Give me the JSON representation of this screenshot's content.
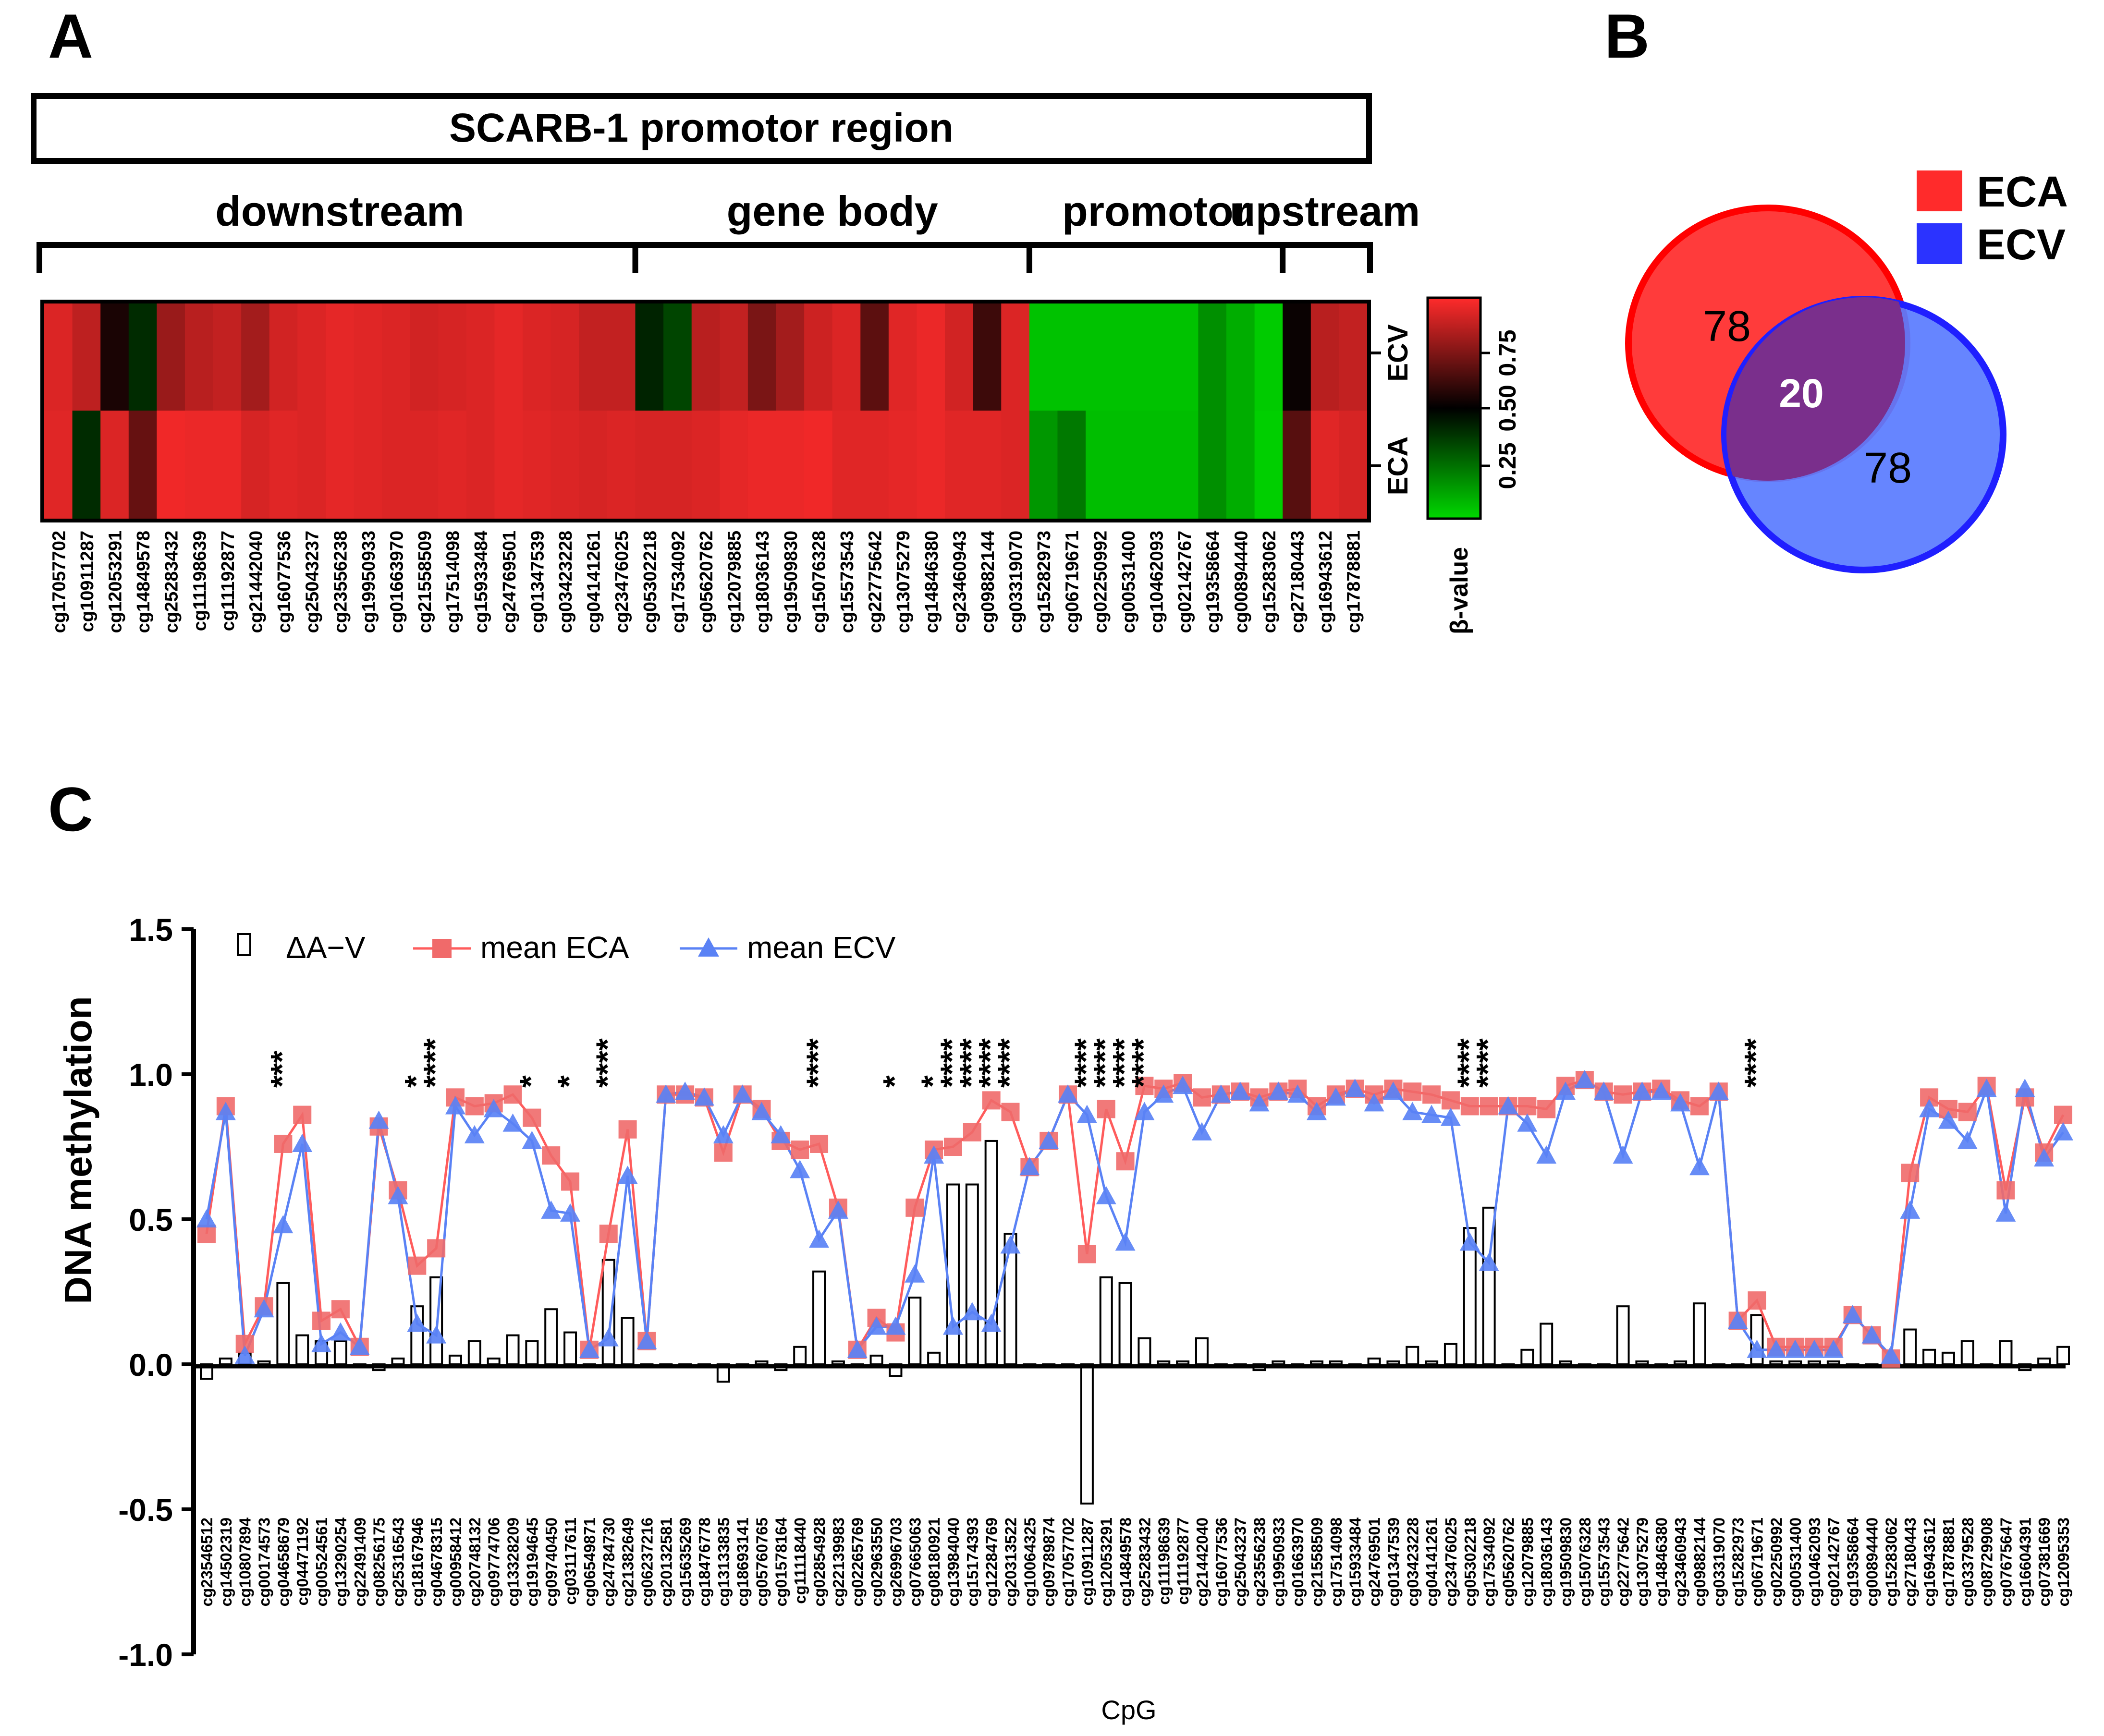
{
  "panels": {
    "a": "A",
    "b": "B",
    "c": "C"
  },
  "colors": {
    "eca": "#ff2b2b",
    "ecv": "#2b33ff",
    "eca_line": "#ff5c5c",
    "ecv_line": "#5a82f5",
    "overlap": "#7a2f8c"
  },
  "panel_a": {
    "title": "SCARB-1 promotor region",
    "regions": [
      {
        "label": "downstream",
        "n": 21
      },
      {
        "label": "gene body",
        "n": 14
      },
      {
        "label": "promotor",
        "n": 9
      },
      {
        "label": "upstream",
        "n": 3
      }
    ],
    "rows": [
      "ECV",
      "ECA"
    ],
    "colorbar_ticks": [
      "0.25",
      "0.50",
      "0.75"
    ],
    "colorbar_title": "β-value"
  },
  "panel_b": {
    "legend": [
      "ECA",
      "ECV"
    ],
    "only_eca": "78",
    "overlap": "20",
    "only_ecv": "78"
  },
  "chart_data": [
    {
      "type": "heatmap",
      "rows": [
        "ECV",
        "ECA"
      ],
      "columns": [
        "cg17057702",
        "cg10911287",
        "cg12053291",
        "cg14849578",
        "cg25283432",
        "cg11198639",
        "cg11192877",
        "cg21442040",
        "cg16077536",
        "cg25043237",
        "cg23556238",
        "cg19950933",
        "cg01663970",
        "cg21558509",
        "cg17514098",
        "cg15933484",
        "cg24769501",
        "cg01347539",
        "cg03423228",
        "cg04141261",
        "cg23476025",
        "cg05302218",
        "cg17534092",
        "cg05620762",
        "cg12079885",
        "cg18036143",
        "cg19509830",
        "cg15076328",
        "cg15573543",
        "cg22775642",
        "cg13075279",
        "cg14846380",
        "cg23460943",
        "cg09882144",
        "cg03319070",
        "cg15282973",
        "cg06719671",
        "cg02250992",
        "cg00531400",
        "cg10462093",
        "cg02142767",
        "cg19358664",
        "cg00894440",
        "cg15283062",
        "cg27180443",
        "cg16943612",
        "cg17878881"
      ],
      "values_ecv": [
        0.93,
        0.87,
        0.55,
        0.4,
        0.8,
        0.86,
        0.88,
        0.82,
        0.91,
        0.93,
        0.95,
        0.94,
        0.93,
        0.91,
        0.92,
        0.93,
        0.95,
        0.93,
        0.92,
        0.88,
        0.88,
        0.42,
        0.34,
        0.86,
        0.88,
        0.74,
        0.82,
        0.9,
        0.93,
        0.68,
        0.94,
        0.96,
        0.91,
        0.62,
        0.93,
        0.05,
        0.05,
        0.05,
        0.05,
        0.05,
        0.05,
        0.17,
        0.1,
        0.03,
        0.52,
        0.86,
        0.88
      ],
      "values_eca": [
        0.94,
        0.4,
        0.93,
        0.7,
        0.97,
        0.96,
        0.96,
        0.92,
        0.94,
        0.93,
        0.95,
        0.94,
        0.93,
        0.93,
        0.94,
        0.93,
        0.95,
        0.94,
        0.93,
        0.92,
        0.93,
        0.92,
        0.92,
        0.93,
        0.95,
        0.96,
        0.96,
        0.97,
        0.94,
        0.94,
        0.95,
        0.96,
        0.94,
        0.94,
        0.93,
        0.15,
        0.22,
        0.06,
        0.06,
        0.06,
        0.06,
        0.17,
        0.1,
        0.02,
        0.67,
        0.94,
        0.92
      ],
      "colorscale": [
        "#00d800",
        "#000000",
        "#ff2b2b"
      ],
      "range": [
        0,
        1
      ]
    },
    {
      "type": "line",
      "title": "",
      "xlabel": "CpG",
      "ylabel": "DNA methylation",
      "ylim": [
        -1.0,
        1.5
      ],
      "yticks": [
        "1.5",
        "1.0",
        "0.5",
        "0.0",
        "-0.5",
        "-1.0"
      ],
      "legend": [
        "ΔA−V",
        "mean ECA",
        "mean ECV"
      ],
      "categories": [
        "cg23546512",
        "cg14502319",
        "cg10807894",
        "cg00174573",
        "cg04658679",
        "cg04471192",
        "cg00524561",
        "cg13290254",
        "cg22491409",
        "cg08256175",
        "cg25316543",
        "cg18167946",
        "cg04678315",
        "cg00958412",
        "cg20748132",
        "cg09774706",
        "cg13328209",
        "cg19194645",
        "cg09740450",
        "cg03117611",
        "cg06549871",
        "cg24784730",
        "cg21382649",
        "cg06237216",
        "cg20132581",
        "cg15635269",
        "cg18476778",
        "cg13133835",
        "cg18693141",
        "cg05760765",
        "cg01578164",
        "cg11118440",
        "cg02854928",
        "cg22139983",
        "cg02265769",
        "cg02963550",
        "cg26996703",
        "cg07665063",
        "cg08180921",
        "cg13984040",
        "cg15174393",
        "cg12284769",
        "cg20313522",
        "cg10064325",
        "cg09789874",
        "cg17057702",
        "cg10911287",
        "cg12053291",
        "cg14849578",
        "cg25283432",
        "cg11198639",
        "cg11192877",
        "cg21442040",
        "cg16077536",
        "cg25043237",
        "cg23556238",
        "cg19950933",
        "cg01663970",
        "cg21558509",
        "cg17514098",
        "cg15933484",
        "cg24769501",
        "cg01347539",
        "cg03423228",
        "cg04141261",
        "cg23476025",
        "cg05302218",
        "cg17534092",
        "cg05620762",
        "cg12079885",
        "cg18036143",
        "cg19509830",
        "cg15076328",
        "cg15573543",
        "cg22775642",
        "cg13075279",
        "cg14846380",
        "cg23460943",
        "cg09882144",
        "cg03319070",
        "cg15282973",
        "cg06719671",
        "cg02250992",
        "cg00531400",
        "cg10462093",
        "cg02142767",
        "cg19358664",
        "cg00894440",
        "cg15283062",
        "cg27180443",
        "cg16943612",
        "cg17878881",
        "cg03379528",
        "cg08729908",
        "cg07675647",
        "cg16604391",
        "cg07381669",
        "cg12095353"
      ],
      "series": [
        {
          "name": "mean ECA",
          "values": [
            0.45,
            0.89,
            0.07,
            0.2,
            0.76,
            0.86,
            0.15,
            0.19,
            0.06,
            0.82,
            0.6,
            0.34,
            0.4,
            0.92,
            0.89,
            0.9,
            0.93,
            0.85,
            0.72,
            0.63,
            0.05,
            0.45,
            0.81,
            0.08,
            0.93,
            0.93,
            0.92,
            0.73,
            0.93,
            0.88,
            0.77,
            0.74,
            0.76,
            0.54,
            0.05,
            0.16,
            0.11,
            0.54,
            0.74,
            0.75,
            0.8,
            0.91,
            0.87,
            0.68,
            0.77,
            0.93,
            0.38,
            0.88,
            0.7,
            0.96,
            0.95,
            0.97,
            0.92,
            0.93,
            0.94,
            0.92,
            0.94,
            0.95,
            0.89,
            0.93,
            0.95,
            0.93,
            0.95,
            0.94,
            0.93,
            0.91,
            0.89,
            0.89,
            0.89,
            0.89,
            0.88,
            0.96,
            0.98,
            0.94,
            0.93,
            0.94,
            0.95,
            0.91,
            0.89,
            0.94,
            0.15,
            0.22,
            0.06,
            0.06,
            0.06,
            0.06,
            0.17,
            0.1,
            0.02,
            0.66,
            0.92,
            0.88,
            0.87,
            0.96,
            0.6,
            0.92,
            0.73,
            0.86
          ]
        },
        {
          "name": "mean ECV",
          "values": [
            0.5,
            0.87,
            0.03,
            0.19,
            0.48,
            0.76,
            0.07,
            0.11,
            0.06,
            0.84,
            0.58,
            0.14,
            0.1,
            0.89,
            0.79,
            0.88,
            0.83,
            0.77,
            0.53,
            0.52,
            0.05,
            0.09,
            0.65,
            0.08,
            0.93,
            0.94,
            0.92,
            0.79,
            0.93,
            0.87,
            0.79,
            0.67,
            0.43,
            0.53,
            0.05,
            0.13,
            0.13,
            0.31,
            0.72,
            0.13,
            0.18,
            0.14,
            0.41,
            0.68,
            0.77,
            0.93,
            0.86,
            0.58,
            0.42,
            0.87,
            0.93,
            0.96,
            0.8,
            0.93,
            0.94,
            0.9,
            0.94,
            0.93,
            0.87,
            0.92,
            0.95,
            0.9,
            0.94,
            0.87,
            0.86,
            0.85,
            0.42,
            0.35,
            0.89,
            0.83,
            0.72,
            0.94,
            0.98,
            0.94,
            0.72,
            0.94,
            0.94,
            0.9,
            0.68,
            0.94,
            0.15,
            0.05,
            0.05,
            0.05,
            0.05,
            0.05,
            0.17,
            0.1,
            0.03,
            0.53,
            0.88,
            0.84,
            0.77,
            0.95,
            0.52,
            0.95,
            0.71,
            0.8
          ]
        },
        {
          "name": "ΔA−V",
          "values": [
            -0.05,
            0.02,
            0.04,
            0.01,
            0.28,
            0.1,
            0.08,
            0.08,
            0.0,
            -0.02,
            0.02,
            0.2,
            0.3,
            0.03,
            0.08,
            0.02,
            0.1,
            0.08,
            0.19,
            0.11,
            0.0,
            0.36,
            0.16,
            -0.01,
            0.0,
            -0.01,
            0.0,
            -0.06,
            0.0,
            0.01,
            -0.02,
            0.06,
            0.32,
            0.01,
            0.0,
            0.03,
            -0.04,
            0.23,
            0.04,
            0.62,
            0.62,
            0.77,
            0.45,
            0.0,
            0.0,
            -0.01,
            -0.48,
            0.3,
            0.28,
            0.09,
            0.01,
            0.01,
            0.09,
            0.0,
            0.0,
            -0.02,
            0.01,
            0.0,
            0.01,
            0.01,
            0.0,
            0.02,
            0.01,
            0.06,
            0.01,
            0.07,
            0.47,
            0.54,
            0.0,
            0.05,
            0.14,
            0.01,
            0.0,
            0.0,
            0.2,
            0.01,
            0.0,
            0.01,
            0.21,
            0.0,
            0.0,
            0.17,
            0.01,
            0.01,
            0.01,
            0.01,
            0.0,
            0.0,
            0.0,
            0.12,
            0.05,
            0.04,
            0.08,
            0.0,
            0.08,
            -0.02,
            0.02,
            0.06
          ]
        }
      ],
      "significance": [
        {
          "index": 4,
          "label": "***"
        },
        {
          "index": 11,
          "label": "*"
        },
        {
          "index": 12,
          "label": "****"
        },
        {
          "index": 17,
          "label": "*"
        },
        {
          "index": 19,
          "label": "*"
        },
        {
          "index": 21,
          "label": "****"
        },
        {
          "index": 32,
          "label": "****"
        },
        {
          "index": 36,
          "label": "*"
        },
        {
          "index": 38,
          "label": "*"
        },
        {
          "index": 39,
          "label": "****"
        },
        {
          "index": 40,
          "label": "****"
        },
        {
          "index": 41,
          "label": "****"
        },
        {
          "index": 42,
          "label": "****"
        },
        {
          "index": 46,
          "label": "****"
        },
        {
          "index": 47,
          "label": "****"
        },
        {
          "index": 48,
          "label": "****"
        },
        {
          "index": 49,
          "label": "****"
        },
        {
          "index": 66,
          "label": "****"
        },
        {
          "index": 67,
          "label": "****"
        },
        {
          "index": 81,
          "label": "****"
        }
      ]
    }
  ]
}
